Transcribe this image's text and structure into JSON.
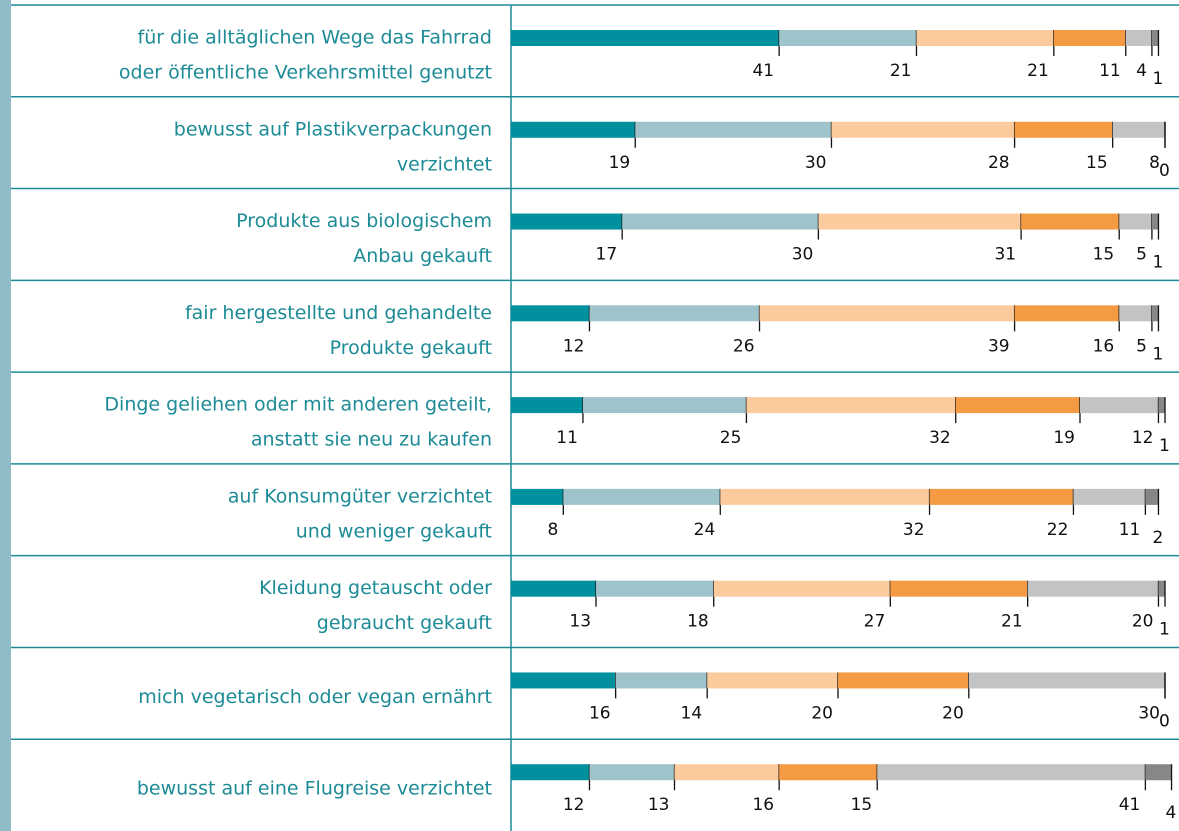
{
  "chart_data": {
    "type": "stacked-bar-horizontal",
    "categories": [
      [
        "für die alltäglichen Wege das Fahrrad",
        "oder öffentliche Verkehrsmittel genutzt"
      ],
      [
        "bewusst auf Plastikverpackungen",
        "verzichtet"
      ],
      [
        "Produkte aus biologischem",
        "Anbau gekauft"
      ],
      [
        "fair hergestellte und gehandelte",
        "Produkte gekauft"
      ],
      [
        "Dinge geliehen oder mit anderen geteilt,",
        "anstatt sie neu zu kaufen"
      ],
      [
        "auf Konsumgüter verzichtet",
        "und weniger gekauft"
      ],
      [
        "Kleidung getauscht oder",
        "gebraucht gekauft"
      ],
      [
        "mich vegetarisch oder vegan ernährt"
      ],
      [
        "bewusst auf eine Flugreise verzichtet"
      ]
    ],
    "xlim": [
      0,
      100
    ],
    "series": [
      {
        "color": "#00909e",
        "values": [
          41,
          19,
          17,
          12,
          11,
          8,
          13,
          16,
          12
        ]
      },
      {
        "color": "#9fc3cb",
        "values": [
          21,
          30,
          30,
          26,
          25,
          24,
          18,
          14,
          13
        ]
      },
      {
        "color": "#fbcb9e",
        "values": [
          21,
          28,
          31,
          39,
          32,
          32,
          27,
          20,
          16
        ]
      },
      {
        "color": "#f39a42",
        "values": [
          11,
          15,
          15,
          16,
          19,
          22,
          21,
          20,
          15
        ]
      },
      {
        "color": "#c3c3c3",
        "values": [
          4,
          8,
          5,
          5,
          12,
          11,
          20,
          30,
          41
        ]
      },
      {
        "color": "#878787",
        "values": [
          1,
          0,
          1,
          1,
          1,
          2,
          1,
          0,
          4
        ]
      }
    ]
  }
}
